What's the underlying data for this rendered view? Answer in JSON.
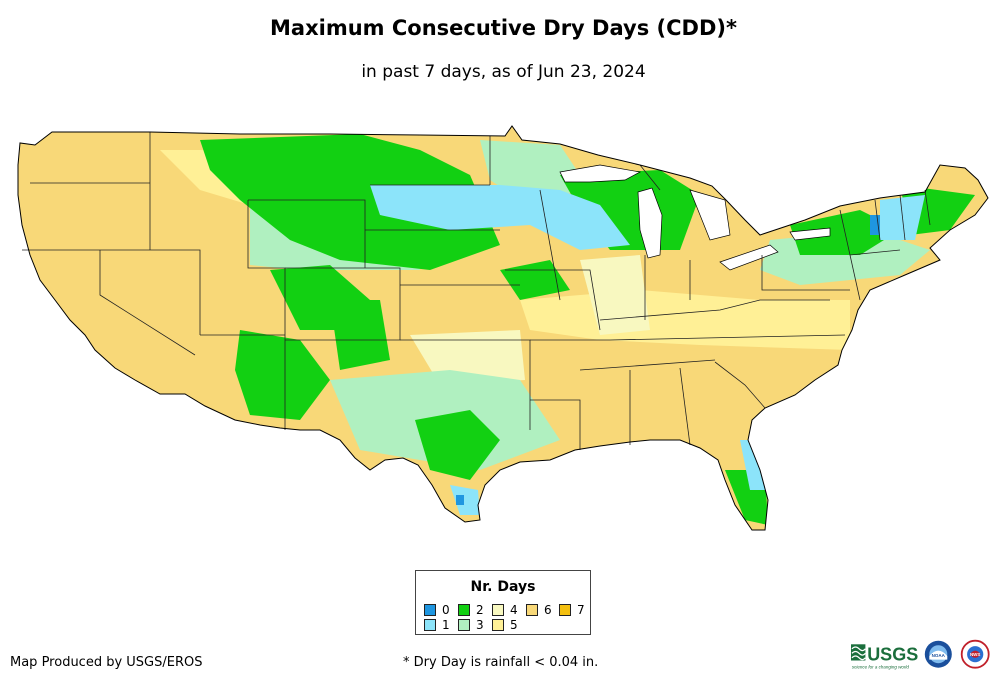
{
  "map": {
    "title": "Maximum Consecutive Dry Days (CDD)*",
    "subtitle": "in past 7 days, as of Jun 23, 2024",
    "region": "Contiguous United States"
  },
  "legend": {
    "title": "Nr. Days",
    "items": [
      {
        "label": "0",
        "color": "#1f96e0"
      },
      {
        "label": "1",
        "color": "#8ce4fa"
      },
      {
        "label": "2",
        "color": "#12d012"
      },
      {
        "label": "3",
        "color": "#b0f0c0"
      },
      {
        "label": "4",
        "color": "#f8f8c0"
      },
      {
        "label": "5",
        "color": "#fff096"
      },
      {
        "label": "6",
        "color": "#f8d878"
      },
      {
        "label": "7",
        "color": "#f4c010"
      }
    ]
  },
  "footer": {
    "credit": "Map Produced by USGS/EROS",
    "footnote": "* Dry Day is rainfall < 0.04 in."
  },
  "logos": {
    "usgs_text": "USGS",
    "usgs_tagline": "science for a changing world",
    "noaa_text": "NOAA",
    "nws_text": "NWS"
  }
}
